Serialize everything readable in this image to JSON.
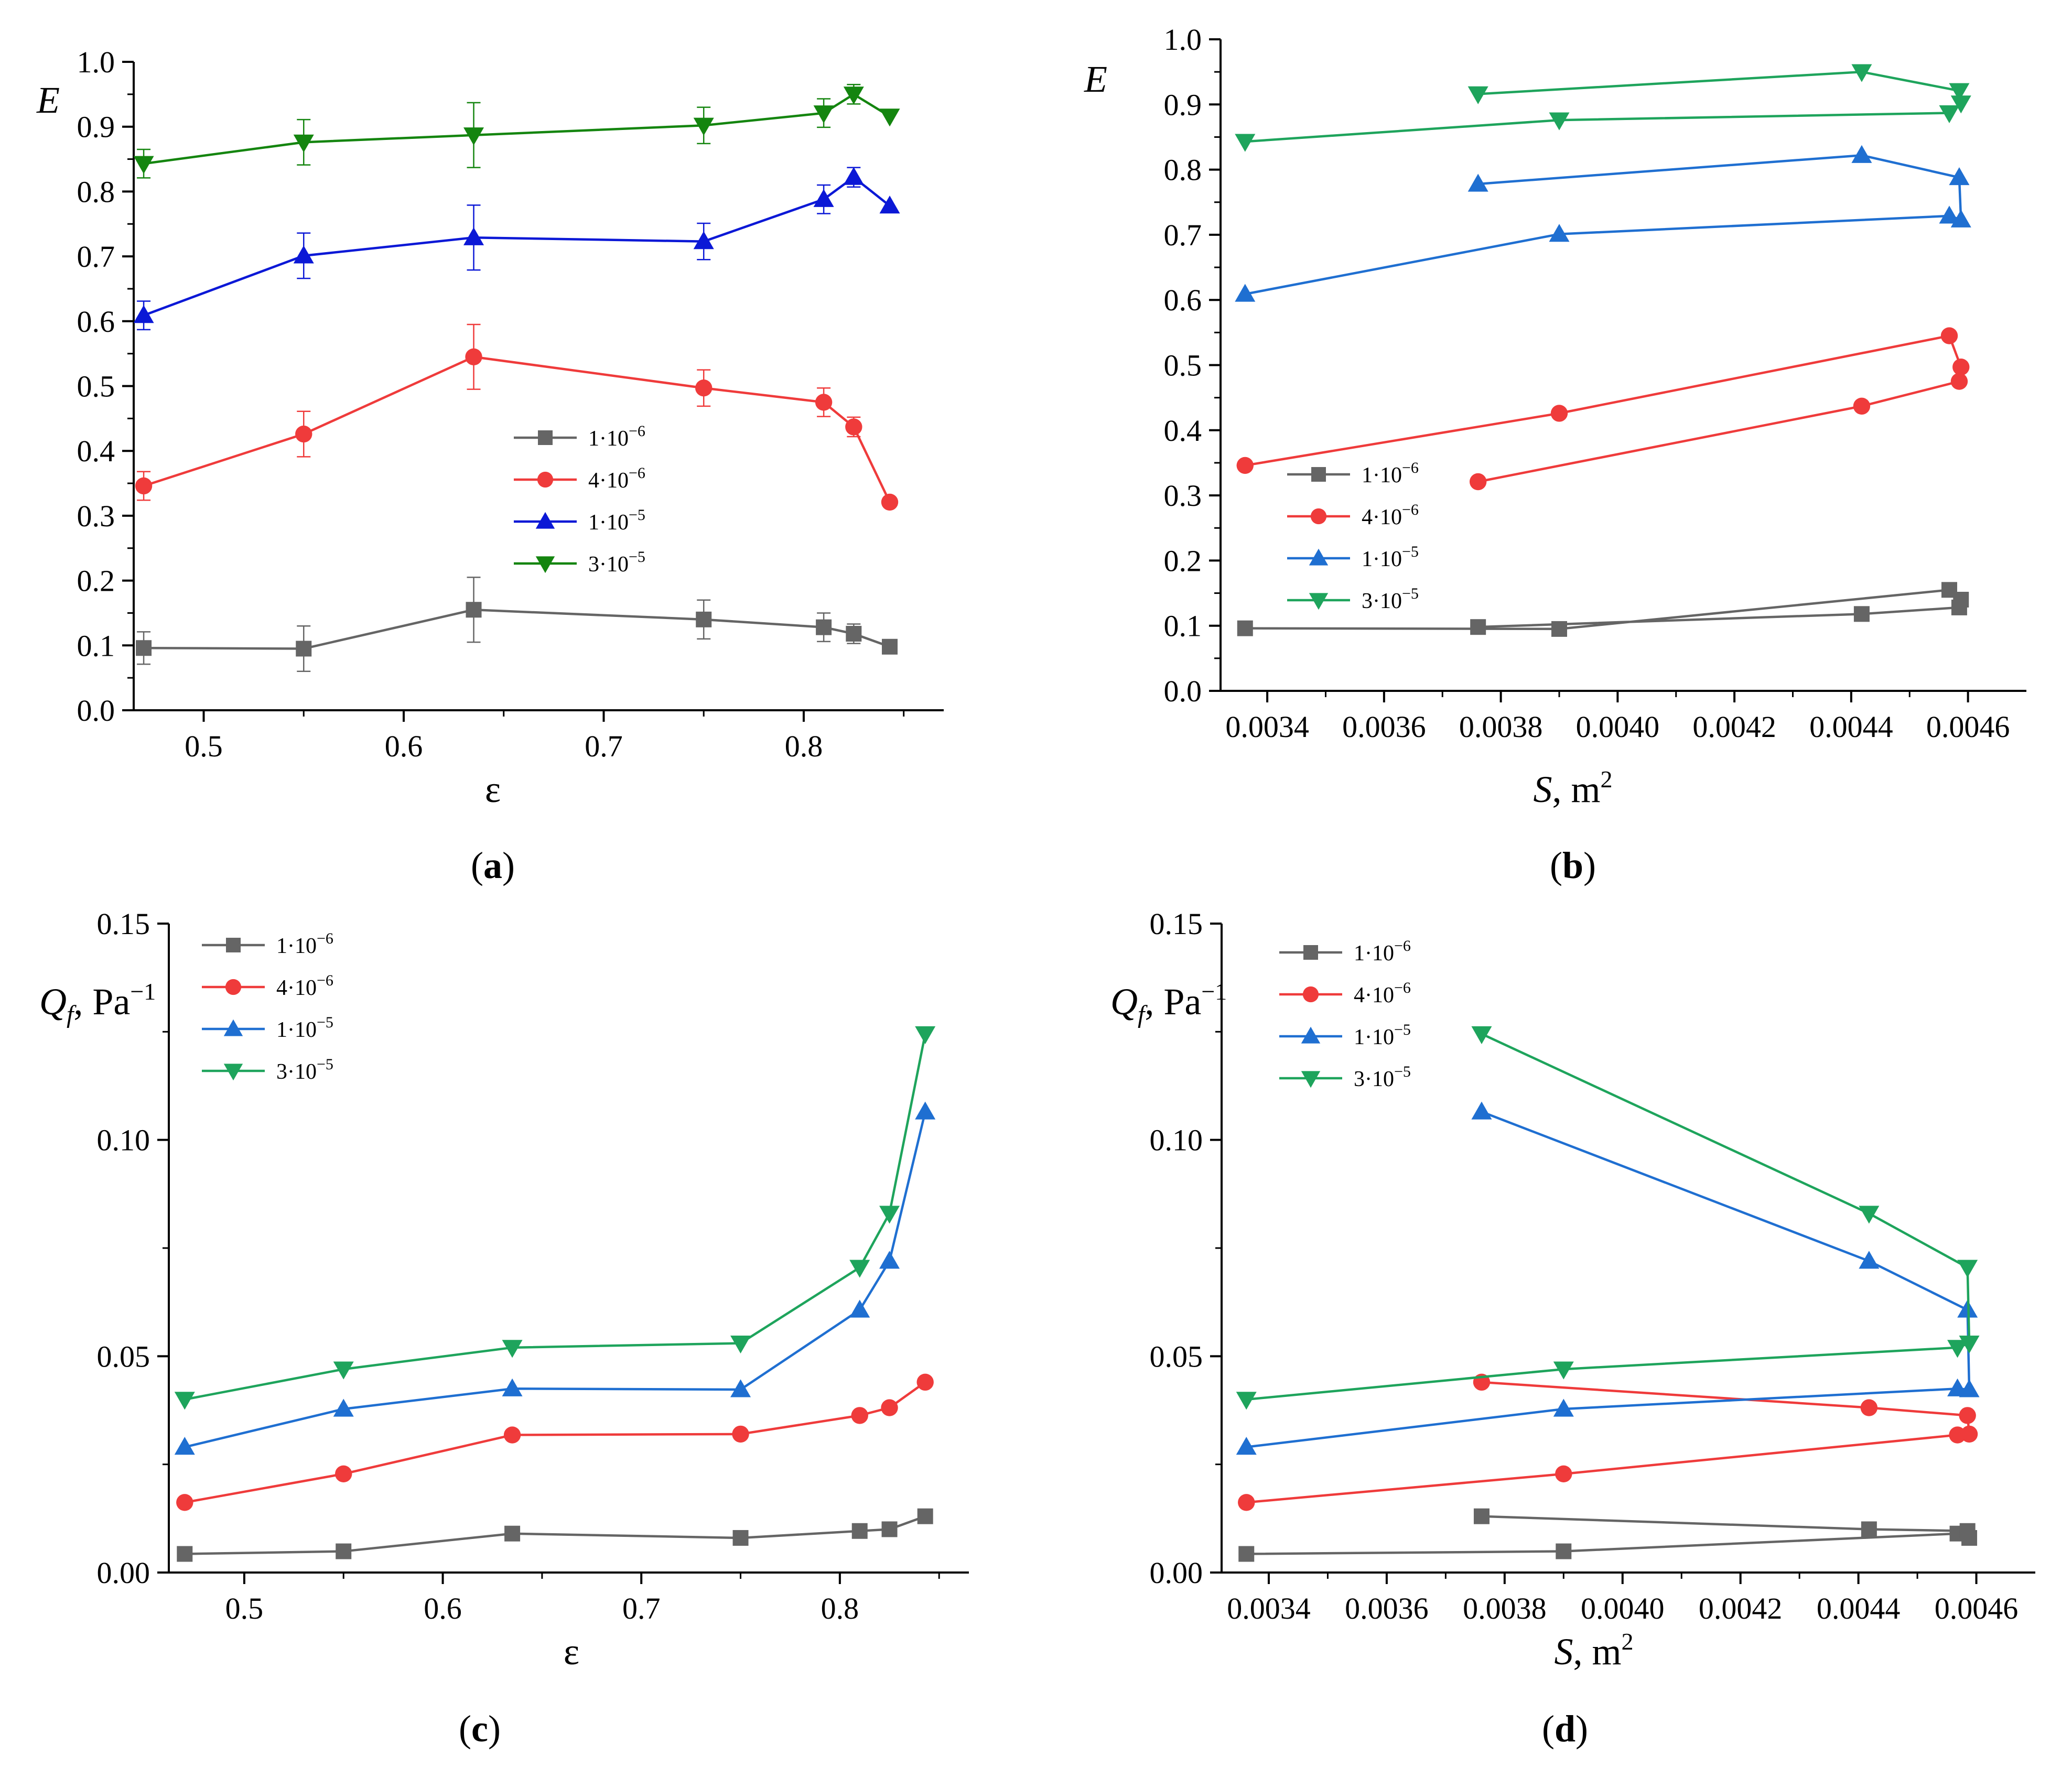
{
  "colors": {
    "1e-6": "#656565",
    "4e-6": "#ef3b3b",
    "1e-5": "#1f6fd1",
    "3e-5": "#1ea45c",
    "1e-5_a": "#0b18d6",
    "3e-5_a": "#14850f",
    "axis": "#000000"
  },
  "legend_labels": {
    "s1": {
      "base": "1·10",
      "exp": "−6"
    },
    "s2": {
      "base": "4·10",
      "exp": "−6"
    },
    "s3": {
      "base": "1·10",
      "exp": "−5"
    },
    "s4": {
      "base": "3·10",
      "exp": "−5"
    }
  },
  "panels": {
    "a": {
      "letter": "a",
      "ylabel": "E",
      "xlabel": "ε"
    },
    "b": {
      "letter": "b",
      "ylabel": "E",
      "xlabel_var": "S",
      "xlabel_unit": ", m",
      "xlabel_exp": "2"
    },
    "c": {
      "letter": "c",
      "ylabel_var": "Q",
      "ylabel_sub": "f",
      "ylabel_unit": ", Pa",
      "ylabel_exp": "−1",
      "xlabel": "ε"
    },
    "d": {
      "letter": "d",
      "ylabel_var": "Q",
      "ylabel_sub": "f",
      "ylabel_unit": ", Pa",
      "ylabel_exp": "−1",
      "xlabel_var": "S",
      "xlabel_unit": ", m",
      "xlabel_exp": "2"
    }
  },
  "chart_data": [
    {
      "id": "a",
      "type": "line",
      "xlabel": "ε",
      "ylabel": "E",
      "xlim": [
        0.465,
        0.87
      ],
      "ylim": [
        0.0,
        1.0
      ],
      "x_ticks": [
        0.5,
        0.6,
        0.7,
        0.8
      ],
      "x_tick_labels": [
        "0.5",
        "0.6",
        "0.7",
        "0.8"
      ],
      "y_ticks": [
        0.0,
        0.1,
        0.2,
        0.3,
        0.4,
        0.5,
        0.6,
        0.7,
        0.8,
        0.9,
        1.0
      ],
      "y_tick_labels": [
        "0.0",
        "0.1",
        "0.2",
        "0.3",
        "0.4",
        "0.5",
        "0.6",
        "0.7",
        "0.8",
        "0.9",
        "1.0"
      ],
      "legend_position": "center-right",
      "series": [
        {
          "name": "1·10⁻⁶",
          "marker": "square",
          "x": [
            0.47,
            0.55,
            0.635,
            0.75,
            0.81,
            0.825,
            0.843
          ],
          "y": [
            0.096,
            0.095,
            0.155,
            0.14,
            0.128,
            0.118,
            0.098
          ],
          "err": [
            0.025,
            0.035,
            0.05,
            0.03,
            0.022,
            0.015,
            0
          ]
        },
        {
          "name": "4·10⁻⁶",
          "marker": "circle",
          "x": [
            0.47,
            0.55,
            0.635,
            0.75,
            0.81,
            0.825,
            0.843
          ],
          "y": [
            0.346,
            0.426,
            0.545,
            0.497,
            0.475,
            0.437,
            0.321
          ],
          "err": [
            0.022,
            0.035,
            0.05,
            0.028,
            0.022,
            0.015,
            0
          ]
        },
        {
          "name": "1·10⁻⁵",
          "marker": "triangle-up",
          "x": [
            0.47,
            0.55,
            0.635,
            0.75,
            0.81,
            0.825,
            0.843
          ],
          "y": [
            0.609,
            0.701,
            0.729,
            0.723,
            0.788,
            0.822,
            0.778
          ],
          "err": [
            0.022,
            0.035,
            0.05,
            0.028,
            0.022,
            0.015,
            0
          ]
        },
        {
          "name": "3·10⁻⁵",
          "marker": "triangle-down",
          "x": [
            0.47,
            0.55,
            0.635,
            0.75,
            0.81,
            0.825,
            0.843
          ],
          "y": [
            0.843,
            0.876,
            0.887,
            0.902,
            0.921,
            0.95,
            0.916
          ],
          "err": [
            0.022,
            0.035,
            0.05,
            0.028,
            0.022,
            0.015,
            0
          ]
        }
      ]
    },
    {
      "id": "b",
      "type": "line",
      "xlabel": "S, m²",
      "ylabel": "E",
      "xlim": [
        0.00332,
        0.0047
      ],
      "ylim": [
        0.0,
        1.0
      ],
      "x_ticks": [
        0.0034,
        0.0036,
        0.0038,
        0.004,
        0.0042,
        0.0044,
        0.0046
      ],
      "x_tick_labels": [
        "0.0034",
        "0.0036",
        "0.0038",
        "0.0040",
        "0.0042",
        "0.0044",
        "0.0046"
      ],
      "y_ticks": [
        0.0,
        0.1,
        0.2,
        0.3,
        0.4,
        0.5,
        0.6,
        0.7,
        0.8,
        0.9,
        1.0
      ],
      "y_tick_labels": [
        "0.0",
        "0.1",
        "0.2",
        "0.3",
        "0.4",
        "0.5",
        "0.6",
        "0.7",
        "0.8",
        "0.9",
        "1.0"
      ],
      "legend_position": "lower-left",
      "series": [
        {
          "name": "1·10⁻⁶",
          "marker": "square",
          "x": [
            0.003362,
            0.0039,
            0.004568,
            0.004588,
            0.004585,
            0.004418,
            0.003761
          ],
          "y": [
            0.096,
            0.095,
            0.155,
            0.14,
            0.128,
            0.118,
            0.098
          ]
        },
        {
          "name": "4·10⁻⁶",
          "marker": "circle",
          "x": [
            0.003362,
            0.0039,
            0.004568,
            0.004588,
            0.004585,
            0.004418,
            0.003761
          ],
          "y": [
            0.346,
            0.426,
            0.545,
            0.497,
            0.475,
            0.437,
            0.321
          ]
        },
        {
          "name": "1·10⁻⁵",
          "marker": "triangle-up",
          "x": [
            0.003362,
            0.0039,
            0.004568,
            0.004588,
            0.004585,
            0.004418,
            0.003761
          ],
          "y": [
            0.609,
            0.701,
            0.729,
            0.723,
            0.788,
            0.822,
            0.778
          ]
        },
        {
          "name": "3·10⁻⁵",
          "marker": "triangle-down",
          "x": [
            0.003362,
            0.0039,
            0.004568,
            0.004588,
            0.004585,
            0.004418,
            0.003761
          ],
          "y": [
            0.843,
            0.876,
            0.887,
            0.902,
            0.921,
            0.95,
            0.916
          ]
        }
      ]
    },
    {
      "id": "c",
      "type": "line",
      "xlabel": "ε",
      "ylabel": "Qf, Pa⁻¹",
      "xlim": [
        0.462,
        0.865
      ],
      "ylim": [
        0.0,
        0.15
      ],
      "x_ticks": [
        0.5,
        0.6,
        0.7,
        0.8
      ],
      "x_tick_labels": [
        "0.5",
        "0.6",
        "0.7",
        "0.8"
      ],
      "y_ticks": [
        0.0,
        0.05,
        0.1,
        0.15
      ],
      "y_tick_labels": [
        "0.00",
        "0.05",
        "0.10",
        "0.15"
      ],
      "legend_position": "top-left",
      "series": [
        {
          "name": "1·10⁻⁶",
          "marker": "square",
          "x": [
            0.47,
            0.55,
            0.635,
            0.75,
            0.81,
            0.825,
            0.843
          ],
          "y": [
            0.0043,
            0.0049,
            0.009,
            0.008,
            0.0096,
            0.01,
            0.013
          ]
        },
        {
          "name": "4·10⁻⁶",
          "marker": "circle",
          "x": [
            0.47,
            0.55,
            0.635,
            0.75,
            0.81,
            0.825,
            0.843
          ],
          "y": [
            0.0162,
            0.0228,
            0.0318,
            0.032,
            0.0363,
            0.0381,
            0.044
          ]
        },
        {
          "name": "1·10⁻⁵",
          "marker": "triangle-up",
          "x": [
            0.47,
            0.55,
            0.635,
            0.75,
            0.81,
            0.825,
            0.843
          ],
          "y": [
            0.029,
            0.0378,
            0.0425,
            0.0423,
            0.0607,
            0.072,
            0.1065
          ]
        },
        {
          "name": "3·10⁻⁵",
          "marker": "triangle-down",
          "x": [
            0.47,
            0.55,
            0.635,
            0.75,
            0.81,
            0.825,
            0.843
          ],
          "y": [
            0.04,
            0.047,
            0.052,
            0.053,
            0.0705,
            0.083,
            0.1245
          ]
        }
      ]
    },
    {
      "id": "d",
      "type": "line",
      "xlabel": "S, m²",
      "ylabel": "Qf, Pa⁻¹",
      "xlim": [
        0.00332,
        0.0047
      ],
      "ylim": [
        0.0,
        0.15
      ],
      "x_ticks": [
        0.0034,
        0.0036,
        0.0038,
        0.004,
        0.0042,
        0.0044,
        0.0046
      ],
      "x_tick_labels": [
        "0.0034",
        "0.0036",
        "0.0038",
        "0.0040",
        "0.0042",
        "0.0044",
        "0.0046"
      ],
      "y_ticks": [
        0.0,
        0.05,
        0.1,
        0.15
      ],
      "y_tick_labels": [
        "0.00",
        "0.05",
        "0.10",
        "0.15"
      ],
      "legend_position": "top-left",
      "series": [
        {
          "name": "1·10⁻⁶",
          "marker": "square",
          "x": [
            0.003362,
            0.0039,
            0.004568,
            0.004588,
            0.004585,
            0.004418,
            0.003761
          ],
          "y": [
            0.0043,
            0.0049,
            0.009,
            0.008,
            0.0096,
            0.01,
            0.013
          ]
        },
        {
          "name": "4·10⁻⁶",
          "marker": "circle",
          "x": [
            0.003362,
            0.0039,
            0.004568,
            0.004588,
            0.004585,
            0.004418,
            0.003761
          ],
          "y": [
            0.0162,
            0.0228,
            0.0318,
            0.032,
            0.0363,
            0.0381,
            0.044
          ]
        },
        {
          "name": "1·10⁻⁵",
          "marker": "triangle-up",
          "x": [
            0.003362,
            0.0039,
            0.004568,
            0.004588,
            0.004585,
            0.004418,
            0.003761
          ],
          "y": [
            0.029,
            0.0378,
            0.0425,
            0.0423,
            0.0607,
            0.072,
            0.1065
          ]
        },
        {
          "name": "3·10⁻⁵",
          "marker": "triangle-down",
          "x": [
            0.003362,
            0.0039,
            0.004568,
            0.004588,
            0.004585,
            0.004418,
            0.003761
          ],
          "y": [
            0.04,
            0.047,
            0.052,
            0.053,
            0.0705,
            0.083,
            0.1245
          ]
        }
      ]
    }
  ]
}
